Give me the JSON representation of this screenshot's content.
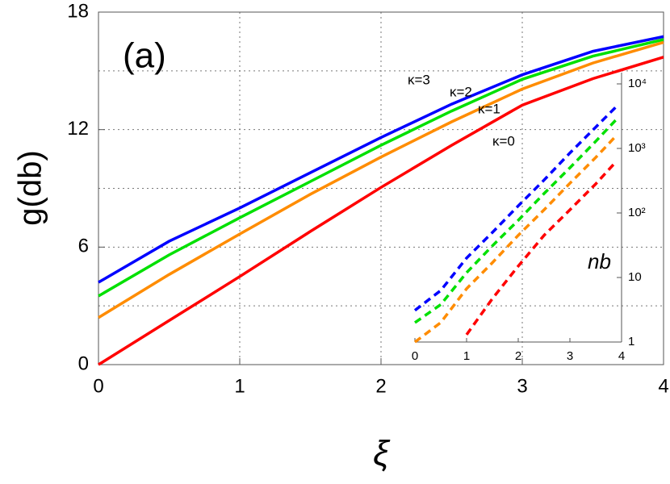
{
  "chart_data": [
    {
      "type": "line",
      "annotation": "(a)",
      "xlabel": "ξ",
      "ylabel": "g(db)",
      "x": [
        0,
        0.5,
        1,
        1.5,
        2,
        2.5,
        3,
        3.5,
        4
      ],
      "xlim": [
        0,
        4
      ],
      "ylim": [
        0,
        18
      ],
      "xticks": [
        0,
        1,
        2,
        3,
        4
      ],
      "yticks": [
        0,
        6,
        12,
        18
      ],
      "minor_yticks": [
        3,
        9,
        15
      ],
      "grid": true,
      "series": [
        {
          "name": "κ=3",
          "color": "#0000ff",
          "values": [
            4.2,
            6.3,
            8.0,
            9.8,
            11.6,
            13.3,
            14.8,
            16.0,
            16.75
          ]
        },
        {
          "name": "κ=2",
          "color": "#00e000",
          "values": [
            3.5,
            5.6,
            7.5,
            9.35,
            11.2,
            12.95,
            14.57,
            15.75,
            16.6
          ]
        },
        {
          "name": "κ=1",
          "color": "#ff8c00",
          "values": [
            2.4,
            4.6,
            6.67,
            8.7,
            10.6,
            12.4,
            14.07,
            15.4,
            16.46
          ]
        },
        {
          "name": "κ=0",
          "color": "#ff0000",
          "values": [
            0,
            2.25,
            4.5,
            6.8,
            9.05,
            11.2,
            13.25,
            14.6,
            15.7
          ]
        }
      ]
    },
    {
      "type": "line",
      "ylabel": "nb",
      "yscale": "log",
      "linestyle": "dashed",
      "x": [
        0,
        0.5,
        1,
        1.5,
        2,
        2.5,
        3,
        3.5,
        3.9
      ],
      "xlim": [
        0,
        4
      ],
      "ylim": [
        1,
        10000
      ],
      "xticks": [
        0,
        1,
        2,
        3,
        4
      ],
      "yticks": [
        1,
        10,
        {
          "value": 100,
          "label": "10²"
        },
        {
          "value": 1000,
          "label": "10³"
        },
        {
          "value": 10000,
          "label": "10⁴"
        }
      ],
      "series": [
        {
          "color": "#0000ff",
          "values": [
            3.1,
            6.3,
            20,
            50,
            129,
            324,
            851,
            2138,
            4467
          ]
        },
        {
          "color": "#00e000",
          "values": [
            2.0,
            3.8,
            11.9,
            31,
            77,
            200,
            501,
            1290,
            2818
          ]
        },
        {
          "color": "#ff8c00",
          "values": [
            1.0,
            2.0,
            6.7,
            17,
            45,
            112,
            288,
            724,
            1585
          ]
        },
        {
          "color": "#ff0000",
          "values": [
            null,
            null,
            1.3,
            4.7,
            15,
            45,
            112,
            282,
            631
          ]
        }
      ]
    }
  ]
}
